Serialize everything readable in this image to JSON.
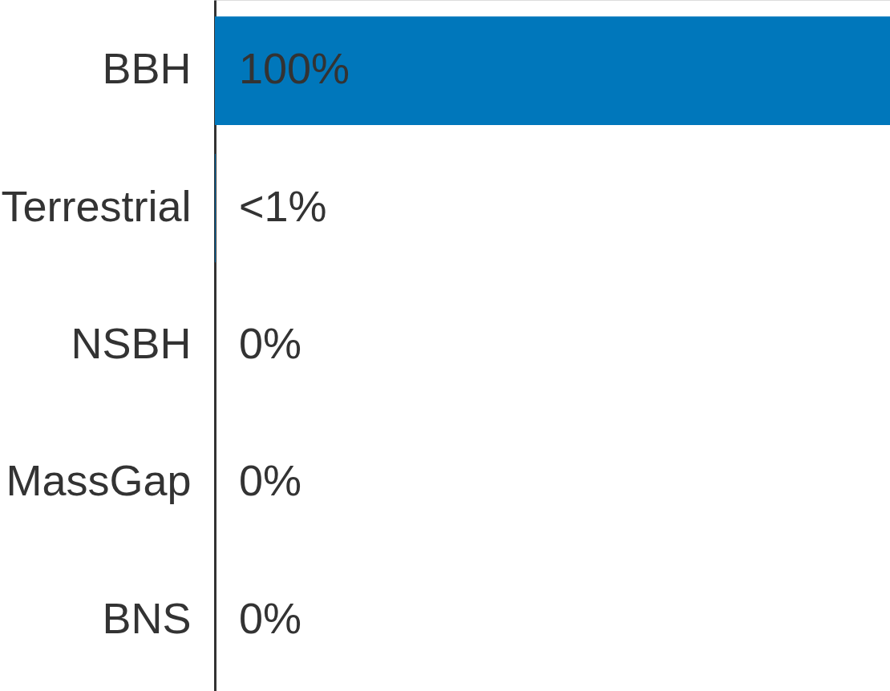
{
  "chart_data": {
    "type": "bar",
    "orientation": "horizontal",
    "categories": [
      "BBH",
      "Terrestrial",
      "NSBH",
      "MassGap",
      "BNS"
    ],
    "values": [
      100,
      0.1,
      0,
      0,
      0
    ],
    "value_labels": [
      "100%",
      "<1%",
      "0%",
      "0%",
      "0%"
    ],
    "color": "#0077bb",
    "xlim": [
      0,
      100
    ],
    "tick_labels": "y",
    "grid": false
  }
}
